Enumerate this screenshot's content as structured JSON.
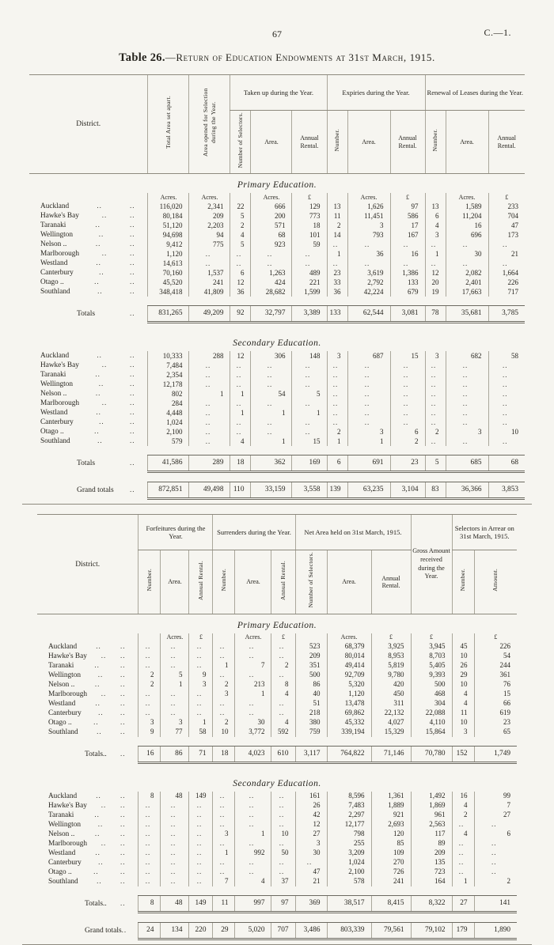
{
  "page": {
    "page_number": "67",
    "doc_ref": "C.—1.",
    "title_bold": "Table 26.",
    "title_rest": "—Return of Education Endowments at 31st March, 1915.",
    "leader": ".."
  },
  "table1": {
    "district_header": "District.",
    "col_total_area": "Total Area set apart.",
    "col_area_opened": "Area opened for Selection during the Year.",
    "groups": [
      {
        "label": "Taken up during the Year.",
        "subs": [
          {
            "t": "Number of Selectors.",
            "v": true
          },
          {
            "t": "Area.",
            "v": false
          },
          {
            "t": "Annual Rental.",
            "v": false
          }
        ]
      },
      {
        "label": "Expiries during the Year.",
        "subs": [
          {
            "t": "Number.",
            "v": true
          },
          {
            "t": "Area.",
            "v": false
          },
          {
            "t": "Annual Rental.",
            "v": false
          }
        ]
      },
      {
        "label": "Renewal of Leases during the Year.",
        "subs": [
          {
            "t": "Number.",
            "v": true
          },
          {
            "t": "Area.",
            "v": false
          },
          {
            "t": "Annual Rental.",
            "v": false
          }
        ]
      }
    ],
    "units": [
      "Acres.",
      "Acres.",
      "",
      "Acres.",
      "£",
      "",
      "Acres.",
      "£",
      "",
      "Acres.",
      "£"
    ],
    "sections": [
      {
        "title": "Primary Education.",
        "show_units": true,
        "rows": [
          {
            "d": "Auckland",
            "v": [
              "116,020",
              "2,341",
              "22",
              "666",
              "129",
              "13",
              "1,626",
              "97",
              "13",
              "1,589",
              "233"
            ]
          },
          {
            "d": "Hawke's Bay",
            "v": [
              "80,184",
              "209",
              "5",
              "200",
              "773",
              "11",
              "11,451",
              "586",
              "6",
              "11,204",
              "704"
            ]
          },
          {
            "d": "Taranaki",
            "v": [
              "51,120",
              "2,203",
              "2",
              "571",
              "18",
              "2",
              "3",
              "17",
              "4",
              "16",
              "47"
            ]
          },
          {
            "d": "Wellington",
            "v": [
              "94,698",
              "94",
              "4",
              "68",
              "101",
              "14",
              "793",
              "167",
              "3",
              "696",
              "173"
            ]
          },
          {
            "d": "Nelson ..",
            "v": [
              "9,412",
              "775",
              "5",
              "923",
              "59",
              "..",
              "..",
              "..",
              "..",
              "..",
              ".."
            ]
          },
          {
            "d": "Marlborough",
            "v": [
              "1,120",
              "..",
              "..",
              "..",
              "..",
              "1",
              "36",
              "16",
              "1",
              "30",
              "21"
            ]
          },
          {
            "d": "Westland",
            "v": [
              "14,613",
              "..",
              "..",
              "..",
              "..",
              "..",
              "..",
              "..",
              "..",
              "..",
              ".."
            ]
          },
          {
            "d": "Canterbury",
            "v": [
              "70,160",
              "1,537",
              "6",
              "1,263",
              "489",
              "23",
              "3,619",
              "1,386",
              "12",
              "2,082",
              "1,664"
            ]
          },
          {
            "d": "Otago ..",
            "v": [
              "45,520",
              "241",
              "12",
              "424",
              "221",
              "33",
              "2,792",
              "133",
              "20",
              "2,401",
              "226"
            ]
          },
          {
            "d": "Southland",
            "v": [
              "348,418",
              "41,809",
              "36",
              "28,682",
              "1,599",
              "36",
              "42,224",
              "679",
              "19",
              "17,663",
              "717"
            ]
          }
        ],
        "totals": {
          "label": "Totals",
          "v": [
            "831,265",
            "49,209",
            "92",
            "32,797",
            "3,389",
            "133",
            "62,544",
            "3,081",
            "78",
            "35,681",
            "3,785"
          ]
        }
      },
      {
        "title": "Secondary Education.",
        "show_units": false,
        "rows": [
          {
            "d": "Auckland",
            "v": [
              "10,333",
              "288",
              "12",
              "306",
              "148",
              "3",
              "687",
              "15",
              "3",
              "682",
              "58"
            ]
          },
          {
            "d": "Hawke's Bay",
            "v": [
              "7,484",
              "..",
              "..",
              "..",
              "..",
              "..",
              "..",
              "..",
              "..",
              "..",
              ".."
            ]
          },
          {
            "d": "Taranaki",
            "v": [
              "2,354",
              "..",
              "..",
              "..",
              "..",
              "..",
              "..",
              "..",
              "..",
              "..",
              ".."
            ]
          },
          {
            "d": "Wellington",
            "v": [
              "12,178",
              "..",
              "..",
              "..",
              "..",
              "..",
              "..",
              "..",
              "..",
              "..",
              ".."
            ]
          },
          {
            "d": "Nelson ..",
            "v": [
              "802",
              "1",
              "1",
              "54",
              "5",
              "..",
              "..",
              "..",
              "..",
              "..",
              ".."
            ]
          },
          {
            "d": "Marlborough",
            "v": [
              "284",
              "..",
              "..",
              "..",
              "..",
              "..",
              "..",
              "..",
              "..",
              "..",
              ".."
            ]
          },
          {
            "d": "Westland",
            "v": [
              "4,448",
              "..",
              "1",
              "1",
              "1",
              "..",
              "..",
              "..",
              "..",
              "..",
              ".."
            ]
          },
          {
            "d": "Canterbury",
            "v": [
              "1,024",
              "..",
              "..",
              "..",
              "..",
              "..",
              "..",
              "..",
              "..",
              "..",
              ".."
            ]
          },
          {
            "d": "Otago ..",
            "v": [
              "2,100",
              "..",
              "..",
              "..",
              "..",
              "2",
              "3",
              "6",
              "2",
              "3",
              "10"
            ]
          },
          {
            "d": "Southland",
            "v": [
              "579",
              "..",
              "4",
              "1",
              "15",
              "1",
              "1",
              "2",
              "..",
              "..",
              ".."
            ]
          }
        ],
        "totals": {
          "label": "Totals",
          "v": [
            "41,586",
            "289",
            "18",
            "362",
            "169",
            "6",
            "691",
            "23",
            "5",
            "685",
            "68"
          ]
        }
      }
    ],
    "grand_totals": {
      "label": "Grand totals",
      "v": [
        "872,851",
        "49,498",
        "110",
        "33,159",
        "3,558",
        "139",
        "63,235",
        "3,104",
        "83",
        "36,366",
        "3,853"
      ]
    }
  },
  "table2": {
    "district_header": "District.",
    "gross_header": "Gross Amount received during the Year.",
    "groups": [
      {
        "label": "Forfeitures during the Year.",
        "subs": [
          {
            "t": "Number.",
            "v": true
          },
          {
            "t": "Area.",
            "v": false
          },
          {
            "t": "Annual Rental.",
            "v": true
          }
        ]
      },
      {
        "label": "Surrenders during the Year.",
        "subs": [
          {
            "t": "Number.",
            "v": true
          },
          {
            "t": "Area.",
            "v": false
          },
          {
            "t": "Annual Rental.",
            "v": true
          }
        ]
      },
      {
        "label": "Net Area held on 31st March, 1915.",
        "subs": [
          {
            "t": "Number of Selectors.",
            "v": true
          },
          {
            "t": "Area.",
            "v": false
          },
          {
            "t": "Annual Rental.",
            "v": false
          }
        ]
      },
      {
        "label": "Selectors in Arrear on 31st March, 1915.",
        "subs": [
          {
            "t": "Number.",
            "v": true
          },
          {
            "t": "Amount.",
            "v": true
          }
        ]
      }
    ],
    "units": [
      "",
      "Acres.",
      "£",
      "",
      "Acres.",
      "£",
      "",
      "Acres.",
      "£",
      "£",
      "",
      "£"
    ],
    "sections": [
      {
        "title": "Primary Education.",
        "show_units": true,
        "rows": [
          {
            "d": "Auckland",
            "v": [
              "..",
              "..",
              "..",
              "..",
              "..",
              "..",
              "523",
              "68,379",
              "3,925",
              "3,945",
              "45",
              "226"
            ]
          },
          {
            "d": "Hawke's Bay",
            "v": [
              "..",
              "..",
              "..",
              "..",
              "..",
              "..",
              "209",
              "80,014",
              "8,953",
              "8,703",
              "10",
              "54"
            ]
          },
          {
            "d": "Taranaki",
            "v": [
              "..",
              "..",
              "..",
              "1",
              "7",
              "2",
              "351",
              "49,414",
              "5,819",
              "5,405",
              "26",
              "244"
            ]
          },
          {
            "d": "Wellington",
            "v": [
              "2",
              "5",
              "9",
              "..",
              "..",
              "..",
              "500",
              "92,709",
              "9,780",
              "9,393",
              "29",
              "361"
            ]
          },
          {
            "d": "Nelson ..",
            "v": [
              "2",
              "1",
              "3",
              "2",
              "213",
              "8",
              "86",
              "5,320",
              "420",
              "500",
              "10",
              "76"
            ]
          },
          {
            "d": "Marlborough",
            "v": [
              "..",
              "..",
              "..",
              "3",
              "1",
              "4",
              "40",
              "1,120",
              "450",
              "468",
              "4",
              "15"
            ]
          },
          {
            "d": "Westland",
            "v": [
              "..",
              "..",
              "..",
              "..",
              "..",
              "..",
              "51",
              "13,478",
              "311",
              "304",
              "4",
              "66"
            ]
          },
          {
            "d": "Canterbury",
            "v": [
              "..",
              "..",
              "..",
              "..",
              "..",
              "..",
              "218",
              "69,862",
              "22,132",
              "22,088",
              "11",
              "619"
            ]
          },
          {
            "d": "Otago ..",
            "v": [
              "3",
              "3",
              "1",
              "2",
              "30",
              "4",
              "380",
              "45,332",
              "4,027",
              "4,110",
              "10",
              "23"
            ]
          },
          {
            "d": "Southland",
            "v": [
              "9",
              "77",
              "58",
              "10",
              "3,772",
              "592",
              "759",
              "339,194",
              "15,329",
              "15,864",
              "3",
              "65"
            ]
          }
        ],
        "totals": {
          "label": "Totals..",
          "v": [
            "16",
            "86",
            "71",
            "18",
            "4,023",
            "610",
            "3,117",
            "764,822",
            "71,146",
            "70,780",
            "152",
            "1,749"
          ]
        }
      },
      {
        "title": "Secondary Education.",
        "show_units": false,
        "rows": [
          {
            "d": "Auckland",
            "v": [
              "8",
              "48",
              "149",
              "..",
              "..",
              "..",
              "161",
              "8,596",
              "1,361",
              "1,492",
              "16",
              "99"
            ]
          },
          {
            "d": "Hawke's Bay",
            "v": [
              "..",
              "..",
              "..",
              "..",
              "..",
              "..",
              "26",
              "7,483",
              "1,889",
              "1,869",
              "4",
              "7"
            ]
          },
          {
            "d": "Taranaki",
            "v": [
              "..",
              "..",
              "..",
              "..",
              "..",
              "..",
              "42",
              "2,297",
              "921",
              "961",
              "2",
              "27"
            ]
          },
          {
            "d": "Wellington",
            "v": [
              "..",
              "..",
              "..",
              "..",
              "..",
              "..",
              "12",
              "12,177",
              "2,693",
              "2,563",
              "..",
              ".."
            ]
          },
          {
            "d": "Nelson ..",
            "v": [
              "..",
              "..",
              "..",
              "3",
              "1",
              "10",
              "27",
              "798",
              "120",
              "117",
              "4",
              "6"
            ]
          },
          {
            "d": "Marlborough",
            "v": [
              "..",
              "..",
              "..",
              "..",
              "..",
              "..",
              "3",
              "255",
              "85",
              "89",
              "..",
              ".."
            ]
          },
          {
            "d": "Westland",
            "v": [
              "..",
              "..",
              "..",
              "1",
              "992",
              "50",
              "30",
              "3,209",
              "109",
              "209",
              "..",
              ".."
            ]
          },
          {
            "d": "Canterbury",
            "v": [
              "..",
              "..",
              "..",
              "..",
              "..",
              "..",
              "..",
              "1,024",
              "270",
              "135",
              "..",
              ".."
            ]
          },
          {
            "d": "Otago ..",
            "v": [
              "..",
              "..",
              "..",
              "..",
              "..",
              "..",
              "47",
              "2,100",
              "726",
              "723",
              "..",
              ".."
            ]
          },
          {
            "d": "Southland",
            "v": [
              "..",
              "..",
              "..",
              "7",
              "4",
              "37",
              "21",
              "578",
              "241",
              "164",
              "1",
              "2"
            ]
          }
        ],
        "totals": {
          "label": "Totals..",
          "v": [
            "8",
            "48",
            "149",
            "11",
            "997",
            "97",
            "369",
            "38,517",
            "8,415",
            "8,322",
            "27",
            "141"
          ]
        }
      }
    ],
    "grand_totals": {
      "label": "Grand totals",
      "v": [
        "24",
        "134",
        "220",
        "29",
        "5,020",
        "707",
        "3,486",
        "803,339",
        "79,561",
        "79,102",
        "179",
        "1,890"
      ]
    }
  }
}
